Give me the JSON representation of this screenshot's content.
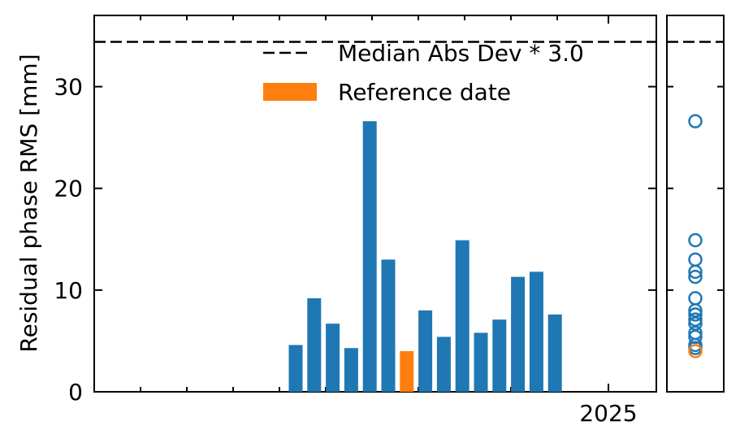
{
  "chart_data": {
    "type": "bar",
    "ylabel": "Residual phase RMS [mm]",
    "ylim": [
      0,
      37
    ],
    "yticks": [
      0,
      10,
      20,
      30
    ],
    "xticks": [
      "2025"
    ],
    "bar_color": "#1f77b4",
    "reference_color": "#ff7f0e",
    "threshold": 34.4,
    "series": [
      {
        "values": [
          4.6,
          9.2,
          6.7,
          4.3,
          26.6,
          13.0,
          4.0,
          8.0,
          5.4,
          14.9,
          5.8,
          7.1,
          11.3,
          11.8,
          7.6
        ]
      }
    ],
    "reference_index": 6,
    "legend": {
      "placement": "top-right",
      "entries": [
        {
          "label": "Median Abs Dev * 3.0",
          "style": "dashed-line"
        },
        {
          "label": "Reference date",
          "style": "patch"
        }
      ]
    },
    "side_panel": {
      "type": "scatter",
      "marker": "open-circle"
    }
  }
}
